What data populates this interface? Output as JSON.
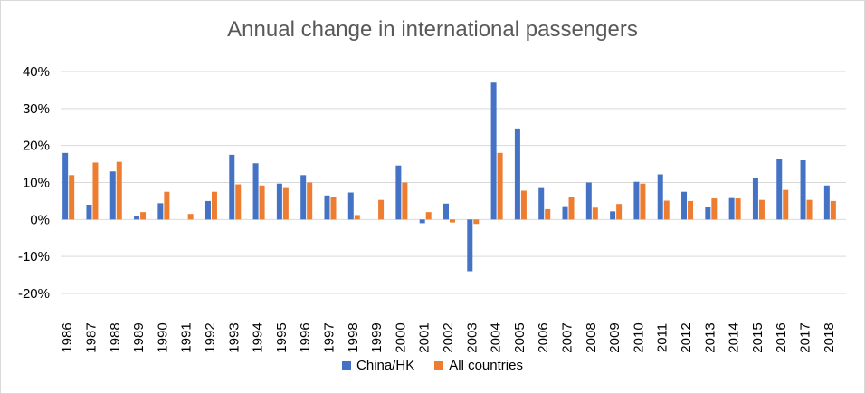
{
  "chart_data": {
    "type": "bar",
    "title": "Annual change in international passengers",
    "xlabel": "",
    "ylabel": "",
    "ylim": [
      -20,
      40
    ],
    "yticks": [
      "40%",
      "30%",
      "20%",
      "10%",
      "0%",
      "-10%",
      "-20%"
    ],
    "ytick_values": [
      40,
      30,
      20,
      10,
      0,
      -10,
      -20
    ],
    "grid": true,
    "legend_position": "bottom",
    "categories": [
      "1986",
      "1987",
      "1988",
      "1989",
      "1990",
      "1991",
      "1992",
      "1993",
      "1994",
      "1995",
      "1996",
      "1997",
      "1998",
      "1999",
      "2000",
      "2001",
      "2002",
      "2003",
      "2004",
      "2005",
      "2006",
      "2007",
      "2008",
      "2009",
      "2010",
      "2011",
      "2012",
      "2013",
      "2014",
      "2015",
      "2016",
      "2017",
      "2018"
    ],
    "series": [
      {
        "name": "China/HK",
        "color": "#4472c4",
        "values": [
          18,
          4,
          13,
          1,
          4.4,
          0,
          5,
          17.5,
          15.2,
          9.7,
          12,
          6.5,
          7.3,
          0,
          14.6,
          -1,
          4.3,
          -14,
          37,
          24.6,
          8.5,
          3.6,
          10,
          2.2,
          10.2,
          12.2,
          7.5,
          3.4,
          5.8,
          11.2,
          16.3,
          16,
          9.2
        ]
      },
      {
        "name": "All countries",
        "color": "#ed7d31",
        "values": [
          12,
          15.4,
          15.6,
          2,
          7.5,
          1.5,
          7.5,
          9.5,
          9.2,
          8.5,
          10,
          6,
          1.2,
          5.3,
          10,
          2,
          -0.8,
          -1.2,
          18,
          7.8,
          2.8,
          6,
          3.2,
          4.2,
          9.7,
          5.1,
          5,
          5.7,
          5.7,
          5.3,
          8,
          5.3,
          5
        ]
      }
    ]
  }
}
